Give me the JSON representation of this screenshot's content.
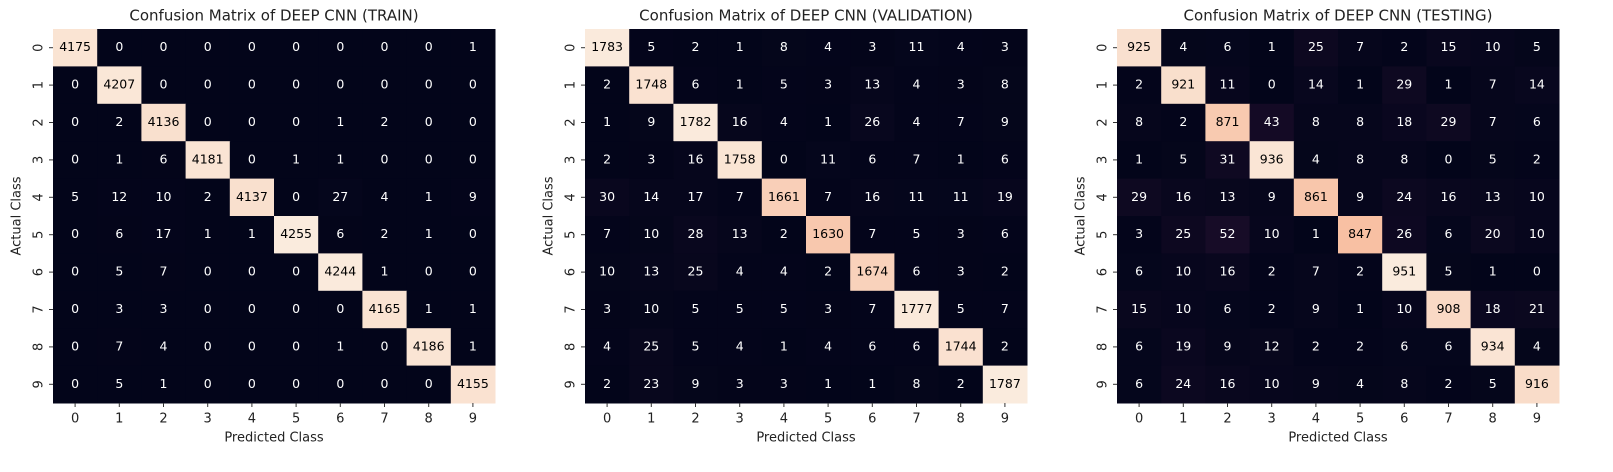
{
  "chart_data": [
    {
      "type": "heatmap",
      "title": "Confusion Matrix of DEEP CNN (TRAIN)",
      "xlabel": "Predicted Class",
      "ylabel": "Actual Class",
      "categories": [
        0,
        1,
        2,
        3,
        4,
        5,
        6,
        7,
        8,
        9
      ],
      "values": [
        [
          4175,
          0,
          0,
          0,
          0,
          0,
          0,
          0,
          0,
          1
        ],
        [
          0,
          4207,
          0,
          0,
          0,
          0,
          0,
          0,
          0,
          0
        ],
        [
          0,
          2,
          4136,
          0,
          0,
          0,
          1,
          2,
          0,
          0
        ],
        [
          0,
          1,
          6,
          4181,
          0,
          1,
          1,
          0,
          0,
          0
        ],
        [
          5,
          12,
          10,
          2,
          4137,
          0,
          27,
          4,
          1,
          9
        ],
        [
          0,
          6,
          17,
          1,
          1,
          4255,
          6,
          2,
          1,
          0
        ],
        [
          0,
          5,
          7,
          0,
          0,
          0,
          4244,
          1,
          0,
          0
        ],
        [
          0,
          3,
          3,
          0,
          0,
          0,
          0,
          4165,
          1,
          1
        ],
        [
          0,
          7,
          4,
          0,
          0,
          0,
          1,
          0,
          4186,
          1
        ],
        [
          0,
          5,
          1,
          0,
          0,
          0,
          0,
          0,
          0,
          4155
        ]
      ]
    },
    {
      "type": "heatmap",
      "title": "Confusion Matrix of DEEP CNN (VALIDATION)",
      "xlabel": "Predicted Class",
      "ylabel": "Actual Class",
      "categories": [
        0,
        1,
        2,
        3,
        4,
        5,
        6,
        7,
        8,
        9
      ],
      "values": [
        [
          1783,
          5,
          2,
          1,
          8,
          4,
          3,
          11,
          4,
          3
        ],
        [
          2,
          1748,
          6,
          1,
          5,
          3,
          13,
          4,
          3,
          8
        ],
        [
          1,
          9,
          1782,
          16,
          4,
          1,
          26,
          4,
          7,
          9
        ],
        [
          2,
          3,
          16,
          1758,
          0,
          11,
          6,
          7,
          1,
          6
        ],
        [
          30,
          14,
          17,
          7,
          1661,
          7,
          16,
          11,
          11,
          19
        ],
        [
          7,
          10,
          28,
          13,
          2,
          1630,
          7,
          5,
          3,
          6
        ],
        [
          10,
          13,
          25,
          4,
          4,
          2,
          1674,
          6,
          3,
          2
        ],
        [
          3,
          10,
          5,
          5,
          5,
          3,
          7,
          1777,
          5,
          7
        ],
        [
          4,
          25,
          5,
          4,
          1,
          4,
          6,
          6,
          1744,
          2
        ],
        [
          2,
          23,
          9,
          3,
          3,
          1,
          1,
          8,
          2,
          1787
        ]
      ]
    },
    {
      "type": "heatmap",
      "title": "Confusion Matrix of DEEP CNN (TESTING)",
      "xlabel": "Predicted Class",
      "ylabel": "Actual Class",
      "categories": [
        0,
        1,
        2,
        3,
        4,
        5,
        6,
        7,
        8,
        9
      ],
      "values": [
        [
          925,
          4,
          6,
          1,
          25,
          7,
          2,
          15,
          10,
          5
        ],
        [
          2,
          921,
          11,
          0,
          14,
          1,
          29,
          1,
          7,
          14
        ],
        [
          8,
          2,
          871,
          43,
          8,
          8,
          18,
          29,
          7,
          6
        ],
        [
          1,
          5,
          31,
          936,
          4,
          8,
          8,
          0,
          5,
          2
        ],
        [
          29,
          16,
          13,
          9,
          861,
          9,
          24,
          16,
          13,
          10
        ],
        [
          3,
          25,
          52,
          10,
          1,
          847,
          26,
          6,
          20,
          10
        ],
        [
          6,
          10,
          16,
          2,
          7,
          2,
          951,
          5,
          1,
          0
        ],
        [
          15,
          10,
          6,
          2,
          9,
          1,
          10,
          908,
          18,
          21
        ],
        [
          6,
          19,
          9,
          12,
          2,
          2,
          6,
          6,
          934,
          4
        ],
        [
          6,
          24,
          16,
          10,
          9,
          4,
          8,
          2,
          5,
          916
        ]
      ]
    }
  ]
}
